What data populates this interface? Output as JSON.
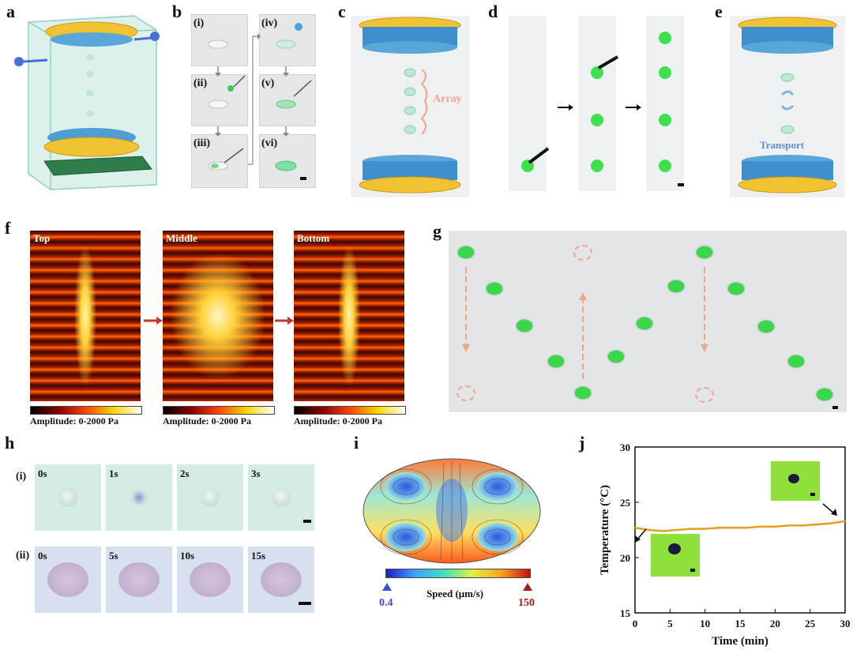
{
  "panels": {
    "a": {
      "label": "a"
    },
    "b": {
      "label": "b",
      "steps": [
        "(i)",
        "(ii)",
        "(iii)",
        "(iv)",
        "(v)",
        "(vi)"
      ]
    },
    "c": {
      "label": "c",
      "annotation": "Array"
    },
    "d": {
      "label": "d"
    },
    "e": {
      "label": "e",
      "annotation": "Transport"
    },
    "f": {
      "label": "f",
      "maps": [
        {
          "title": "Top"
        },
        {
          "title": "Middle"
        },
        {
          "title": "Bottom"
        }
      ],
      "colorbar_label": "Amplitude: 0-2000 Pa"
    },
    "g": {
      "label": "g"
    },
    "h": {
      "label": "h",
      "row_i": {
        "label": "(i)",
        "times": [
          "0s",
          "1s",
          "2s",
          "3s"
        ]
      },
      "row_ii": {
        "label": "(ii)",
        "times": [
          "0s",
          "5s",
          "10s",
          "15s"
        ]
      }
    },
    "i": {
      "label": "i",
      "colorbar_label": "Speed (μm/s)",
      "min": "0.4",
      "max": "150"
    },
    "j": {
      "label": "j"
    }
  },
  "chart_data": {
    "type": "line",
    "xlabel": "Time (min)",
    "ylabel": "Temperature (°C)",
    "xlim": [
      0,
      30
    ],
    "ylim": [
      15,
      30
    ],
    "xticks": [
      0,
      5,
      10,
      15,
      20,
      25,
      30
    ],
    "yticks": [
      15,
      20,
      25,
      30
    ],
    "series": [
      {
        "color": "#e0a020",
        "x": [
          0,
          2,
          4,
          6,
          8,
          10,
          12,
          14,
          16,
          18,
          20,
          22,
          24,
          26,
          28,
          30
        ],
        "y": [
          22.7,
          22.5,
          22.4,
          22.5,
          22.6,
          22.6,
          22.7,
          22.7,
          22.7,
          22.8,
          22.8,
          22.9,
          22.9,
          23.0,
          23.1,
          23.3
        ]
      }
    ]
  }
}
